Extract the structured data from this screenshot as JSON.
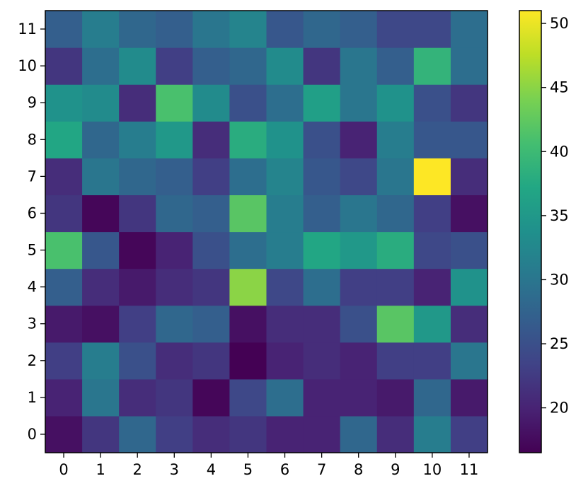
{
  "chart_data": {
    "type": "heatmap",
    "title": "",
    "xlabel": "",
    "ylabel": "",
    "x_ticks": [
      "0",
      "1",
      "2",
      "3",
      "4",
      "5",
      "6",
      "7",
      "8",
      "9",
      "10",
      "11"
    ],
    "y_ticks": [
      "0",
      "1",
      "2",
      "3",
      "4",
      "5",
      "6",
      "7",
      "8",
      "9",
      "10",
      "11"
    ],
    "y_origin": "bottom",
    "colormap": "viridis",
    "zlim": [
      16.5,
      51
    ],
    "colorbar_ticks": [
      "20",
      "25",
      "30",
      "35",
      "40",
      "45",
      "50"
    ],
    "grid": false,
    "values": [
      [
        18,
        22,
        28,
        23,
        21,
        22,
        20,
        20,
        28,
        21,
        31,
        23
      ],
      [
        20,
        30,
        21,
        22,
        17,
        24,
        29,
        20,
        20,
        19,
        28,
        19
      ],
      [
        23,
        31,
        25,
        21,
        22,
        16.5,
        20,
        21,
        20,
        23,
        23,
        30
      ],
      [
        19,
        18,
        23,
        28,
        27,
        18,
        21,
        21,
        25,
        42,
        35,
        21
      ],
      [
        27,
        21,
        19,
        21,
        22,
        45,
        24,
        29,
        23,
        23,
        20,
        34
      ],
      [
        41,
        26,
        17,
        20,
        25,
        29,
        31,
        37,
        35,
        38,
        24,
        25
      ],
      [
        22,
        17,
        22,
        28,
        27,
        42,
        31,
        27,
        30,
        28,
        23,
        18
      ],
      [
        21,
        30,
        28,
        27,
        23,
        29,
        32,
        26,
        24,
        30,
        51,
        21
      ],
      [
        37,
        28,
        31,
        35,
        21,
        38,
        34,
        25,
        20,
        31,
        26,
        26
      ],
      [
        34,
        33,
        21,
        41,
        33,
        25,
        29,
        36,
        30,
        34,
        25,
        22
      ],
      [
        22,
        29,
        33,
        23,
        27,
        28,
        33,
        22,
        30,
        27,
        39,
        29
      ],
      [
        27,
        31,
        28,
        27,
        30,
        32,
        26,
        28,
        27,
        24,
        24,
        29
      ]
    ]
  }
}
